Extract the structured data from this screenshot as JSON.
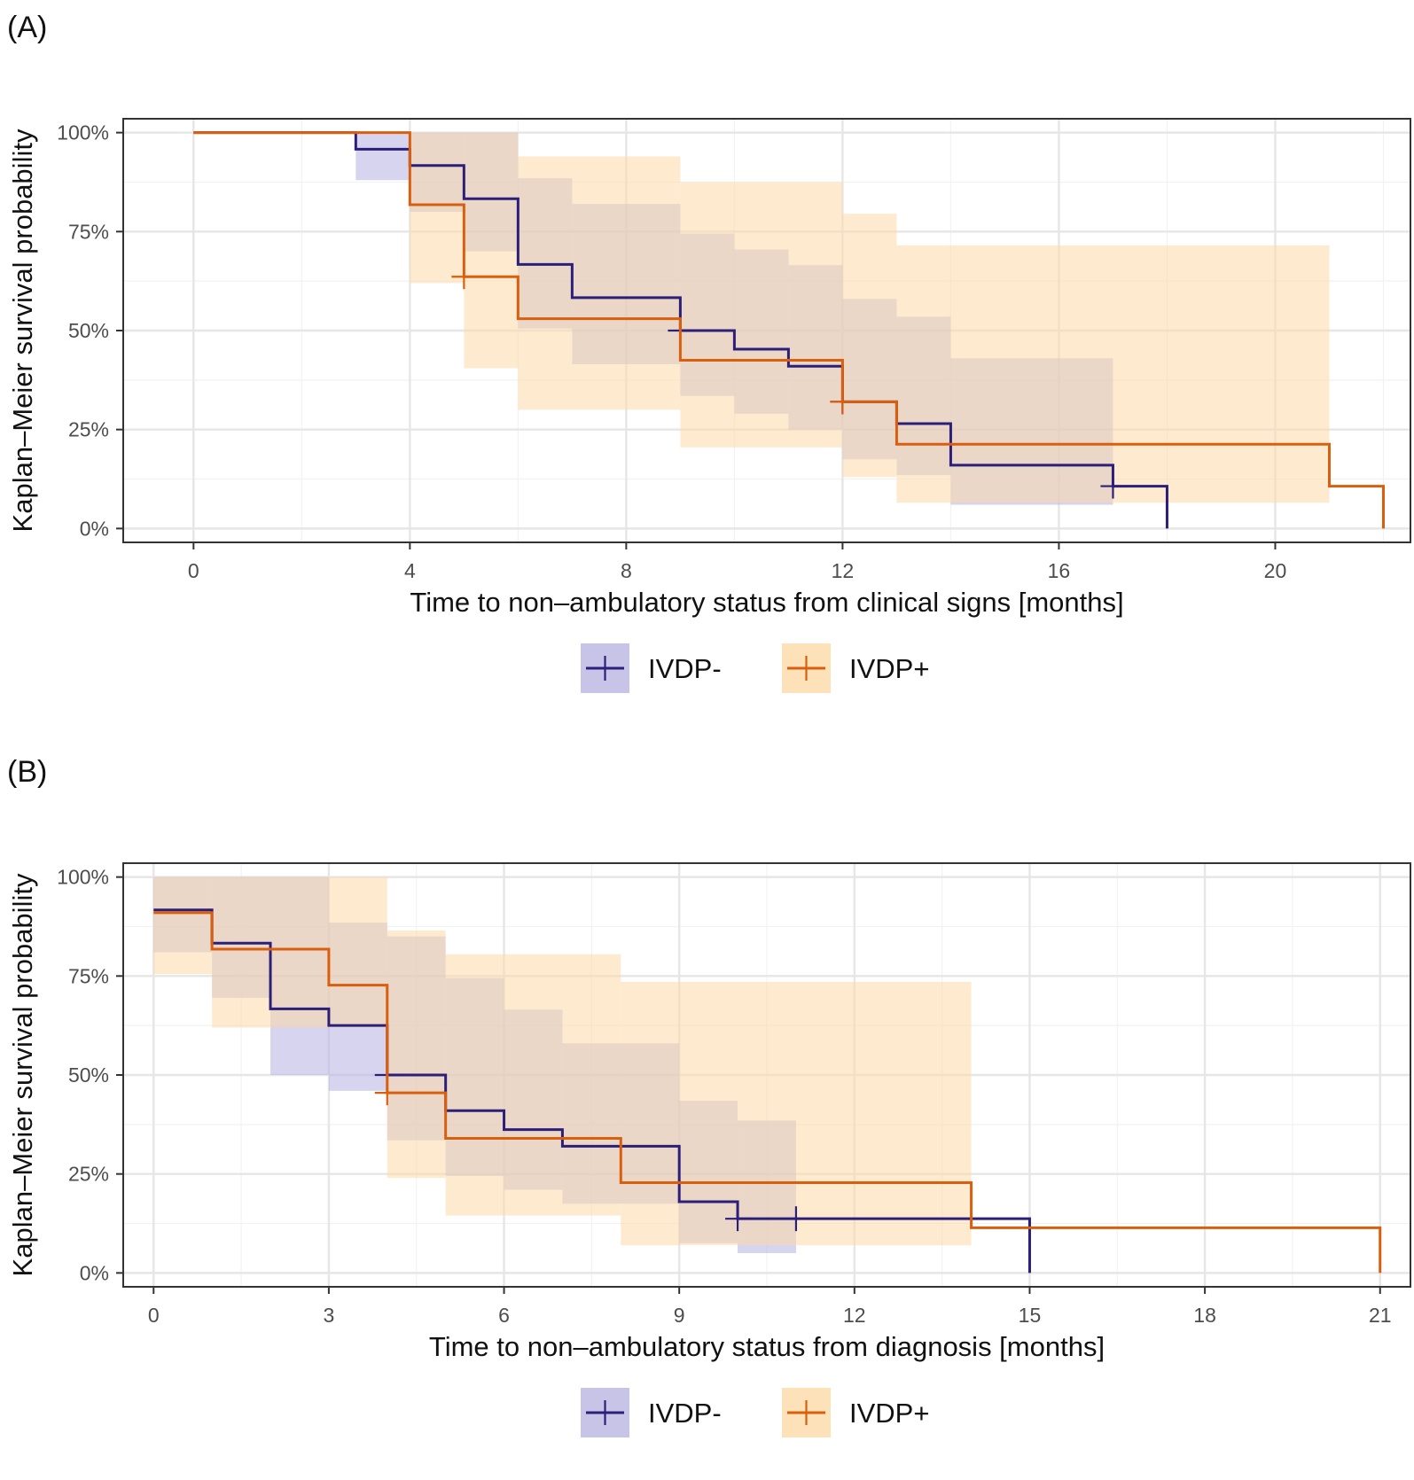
{
  "figure": {
    "colors": {
      "ivdp_minus_line": "#2b1f7a",
      "ivdp_minus_fill": "#b5b0e0",
      "ivdp_plus_line": "#d95f0e",
      "ivdp_plus_fill": "#fdd9a8",
      "grid_major": "#e6e6e6",
      "grid_minor": "#f2f2f2",
      "axis_text": "#4d4d4d",
      "frame": "#333333"
    }
  },
  "chart_data": [
    {
      "panel_label": "(A)",
      "type": "line",
      "subtype": "kaplan-meier step",
      "xlabel": "Time to non–ambulatory status from clinical signs [months]",
      "ylabel": "Kaplan–Meier survival probability",
      "xlim": [
        -1.3,
        22.5
      ],
      "ylim": [
        -0.035,
        1.035
      ],
      "x_major_ticks": [
        0,
        4,
        8,
        12,
        16,
        20
      ],
      "x_tick_labels": [
        "0",
        "4",
        "8",
        "12",
        "16",
        "20"
      ],
      "x_minor_ticks": [
        2,
        6,
        10,
        14,
        18,
        22
      ],
      "y_major_ticks": [
        0,
        0.25,
        0.5,
        0.75,
        1.0
      ],
      "y_tick_labels": [
        "0%",
        "25%",
        "50%",
        "75%",
        "100%"
      ],
      "y_minor_ticks": [
        0.125,
        0.375,
        0.625,
        0.875
      ],
      "legend": {
        "position": "bottom",
        "entries": [
          "IVDP-",
          "IVDP+"
        ]
      },
      "series": [
        {
          "name": "IVDP-",
          "steps": [
            [
              0,
              1.0
            ],
            [
              3,
              0.958
            ],
            [
              4,
              0.917
            ],
            [
              5,
              0.833
            ],
            [
              6,
              0.667
            ],
            [
              7,
              0.583
            ],
            [
              9,
              0.5
            ],
            [
              10,
              0.453
            ],
            [
              11,
              0.41
            ],
            [
              12,
              0.32
            ],
            [
              13,
              0.265
            ],
            [
              14,
              0.16
            ],
            [
              17,
              0.107
            ],
            [
              18,
              0.0
            ]
          ],
          "end": 18,
          "ci": [
            [
              0,
              1.0,
              1.0
            ],
            [
              3,
              0.88,
              1.0
            ],
            [
              4,
              0.8,
              1.0
            ],
            [
              5,
              0.7,
              1.0
            ],
            [
              6,
              0.505,
              0.885
            ],
            [
              7,
              0.415,
              0.82
            ],
            [
              9,
              0.335,
              0.745
            ],
            [
              10,
              0.29,
              0.705
            ],
            [
              11,
              0.25,
              0.665
            ],
            [
              12,
              0.175,
              0.58
            ],
            [
              13,
              0.135,
              0.535
            ],
            [
              14,
              0.06,
              0.43
            ]
          ],
          "ci_end": 17,
          "censor_marks": [
            [
              9,
              0.5
            ],
            [
              12,
              0.32
            ],
            [
              17,
              0.107
            ]
          ]
        },
        {
          "name": "IVDP+",
          "steps": [
            [
              0,
              1.0
            ],
            [
              4,
              0.818
            ],
            [
              5,
              0.636
            ],
            [
              6,
              0.53
            ],
            [
              9,
              0.425
            ],
            [
              12,
              0.32
            ],
            [
              13,
              0.213
            ],
            [
              21,
              0.107
            ],
            [
              22,
              0.0
            ]
          ],
          "end": 22,
          "ci": [
            [
              0,
              1.0,
              1.0
            ],
            [
              4,
              0.62,
              1.0
            ],
            [
              5,
              0.405,
              1.0
            ],
            [
              6,
              0.3,
              0.94
            ],
            [
              9,
              0.205,
              0.875
            ],
            [
              12,
              0.13,
              0.795
            ],
            [
              13,
              0.065,
              0.715
            ]
          ],
          "ci_end": 21,
          "censor_marks": [
            [
              5,
              0.636
            ],
            [
              12,
              0.32
            ]
          ]
        }
      ]
    },
    {
      "panel_label": "(B)",
      "type": "line",
      "subtype": "kaplan-meier step",
      "xlabel": "Time to non–ambulatory status from diagnosis [months]",
      "ylabel": "Kaplan–Meier survival probability",
      "xlim": [
        -0.52,
        21.52
      ],
      "ylim": [
        -0.035,
        1.035
      ],
      "x_major_ticks": [
        0,
        3,
        6,
        9,
        12,
        15,
        18,
        21
      ],
      "x_tick_labels": [
        "0",
        "3",
        "6",
        "9",
        "12",
        "15",
        "18",
        "21"
      ],
      "x_minor_ticks": [
        1.5,
        4.5,
        7.5,
        10.5,
        13.5,
        16.5,
        19.5
      ],
      "y_major_ticks": [
        0,
        0.25,
        0.5,
        0.75,
        1.0
      ],
      "y_tick_labels": [
        "0%",
        "25%",
        "50%",
        "75%",
        "100%"
      ],
      "y_minor_ticks": [
        0.125,
        0.375,
        0.625,
        0.875
      ],
      "legend": {
        "position": "bottom",
        "entries": [
          "IVDP-",
          "IVDP+"
        ]
      },
      "series": [
        {
          "name": "IVDP-",
          "steps": [
            [
              0,
              0.917
            ],
            [
              1,
              0.833
            ],
            [
              2,
              0.667
            ],
            [
              3,
              0.625
            ],
            [
              4,
              0.5
            ],
            [
              5,
              0.41
            ],
            [
              6,
              0.362
            ],
            [
              7,
              0.32
            ],
            [
              9,
              0.18
            ],
            [
              10,
              0.137
            ],
            [
              15,
              0.0
            ]
          ],
          "end": 15,
          "ci": [
            [
              0,
              0.81,
              1.0
            ],
            [
              1,
              0.695,
              1.0
            ],
            [
              2,
              0.5,
              1.0
            ],
            [
              3,
              0.46,
              0.885
            ],
            [
              4,
              0.335,
              0.85
            ],
            [
              5,
              0.245,
              0.745
            ],
            [
              6,
              0.21,
              0.665
            ],
            [
              7,
              0.175,
              0.58
            ],
            [
              9,
              0.075,
              0.435
            ],
            [
              10,
              0.05,
              0.385
            ]
          ],
          "ci_end": 11,
          "censor_marks": [
            [
              4,
              0.5
            ],
            [
              10,
              0.137
            ],
            [
              11,
              0.137
            ]
          ]
        },
        {
          "name": "IVDP+",
          "steps": [
            [
              0,
              0.91
            ],
            [
              1,
              0.818
            ],
            [
              3,
              0.727
            ],
            [
              4,
              0.455
            ],
            [
              5,
              0.34
            ],
            [
              8,
              0.228
            ],
            [
              14,
              0.114
            ],
            [
              21,
              0.0
            ]
          ],
          "end": 21,
          "ci": [
            [
              0,
              0.755,
              1.0
            ],
            [
              1,
              0.62,
              1.0
            ],
            [
              4,
              0.24,
              0.865
            ],
            [
              5,
              0.145,
              0.805
            ],
            [
              8,
              0.07,
              0.735
            ]
          ],
          "ci_end": 14,
          "censor_marks": [
            [
              4,
              0.455
            ]
          ]
        }
      ]
    }
  ]
}
